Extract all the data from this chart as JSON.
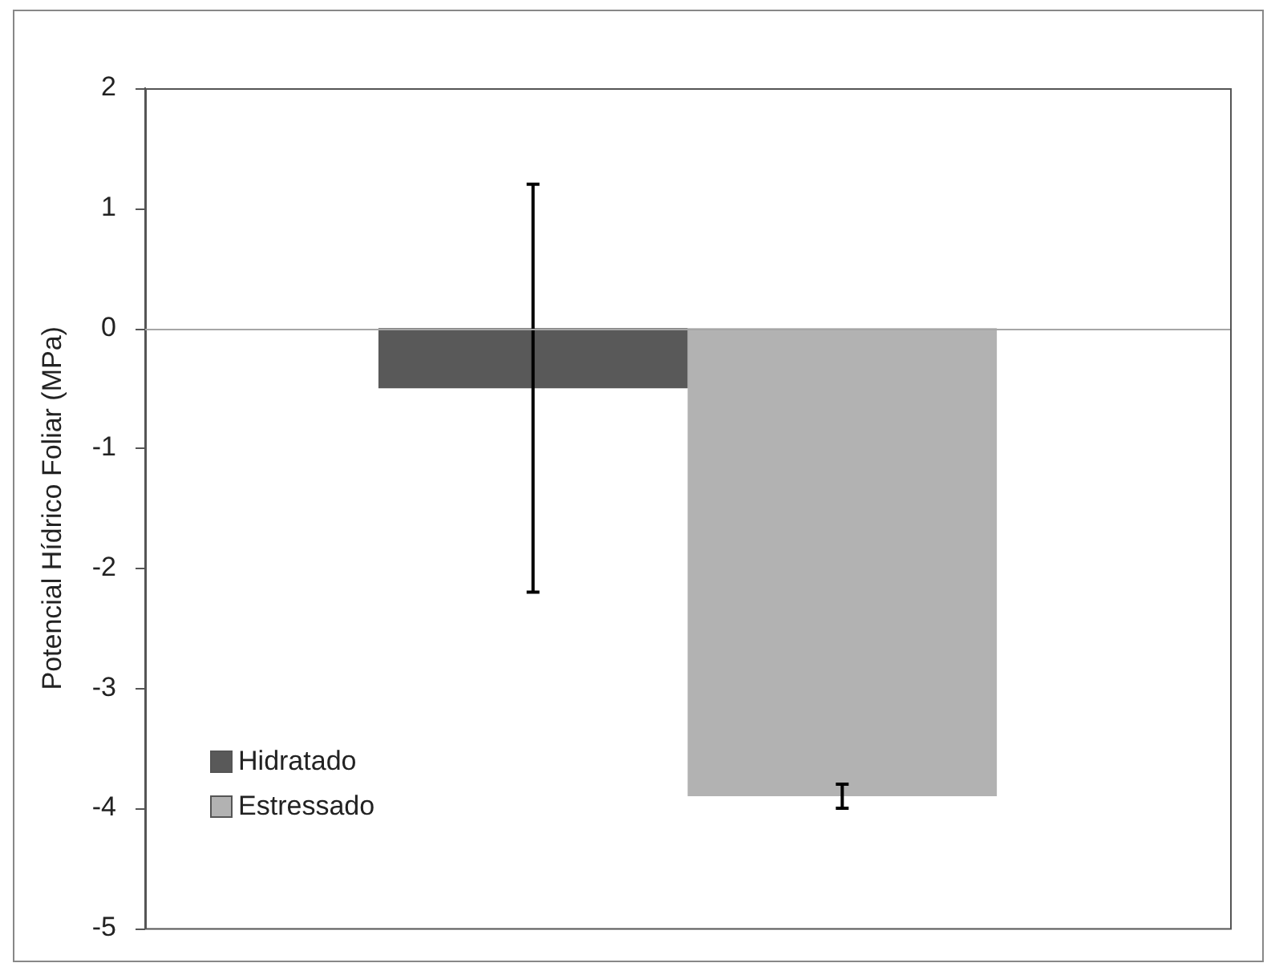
{
  "chart_data": {
    "type": "bar",
    "ylabel": "Potencial Hídrico Foliar (MPa)",
    "categories": [
      null
    ],
    "series": [
      {
        "name": "Hidratado",
        "color": "#595959",
        "values": [
          -0.5
        ],
        "errors": [
          1.7
        ]
      },
      {
        "name": "Estressado",
        "color": "#b2b2b2",
        "values": [
          -3.9
        ],
        "errors": [
          0.1
        ]
      }
    ],
    "ref_lines": [
      {
        "axis": "y",
        "value": 0,
        "color": "#a6a6a6"
      }
    ],
    "ylim": [
      -5,
      2
    ],
    "yticks": [
      -5,
      -4,
      -3,
      -2,
      -1,
      0,
      1,
      2
    ],
    "grid": false,
    "legend": "bottom left"
  }
}
